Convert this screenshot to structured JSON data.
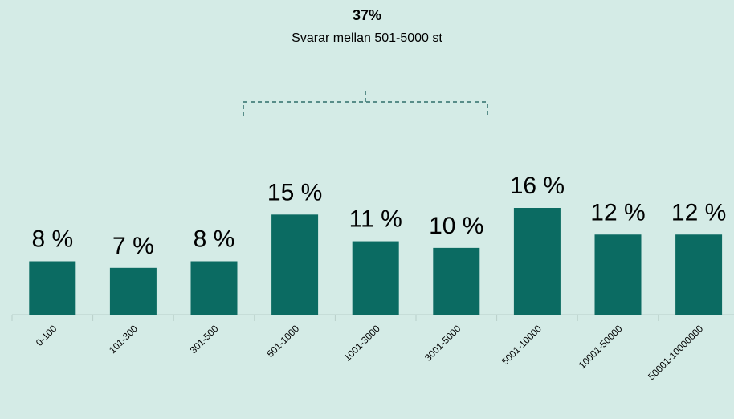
{
  "chart_data": {
    "type": "bar",
    "annotation": {
      "text": "37%",
      "detail": "Svarar mellan 501-5000 st"
    },
    "categories": [
      "0-100",
      "101-300",
      "301-500",
      "501-1000",
      "1001-3000",
      "3001-5000",
      "5001-10000",
      "10001-50000",
      "50001-10000000"
    ],
    "values": [
      8,
      7,
      8,
      15,
      11,
      10,
      16,
      12,
      12
    ],
    "value_labels": [
      "8 %",
      "7 %",
      "8 %",
      "15 %",
      "11 %",
      "10 %",
      "16 %",
      "12 %",
      "12 %"
    ],
    "color": "#0b6b62"
  }
}
